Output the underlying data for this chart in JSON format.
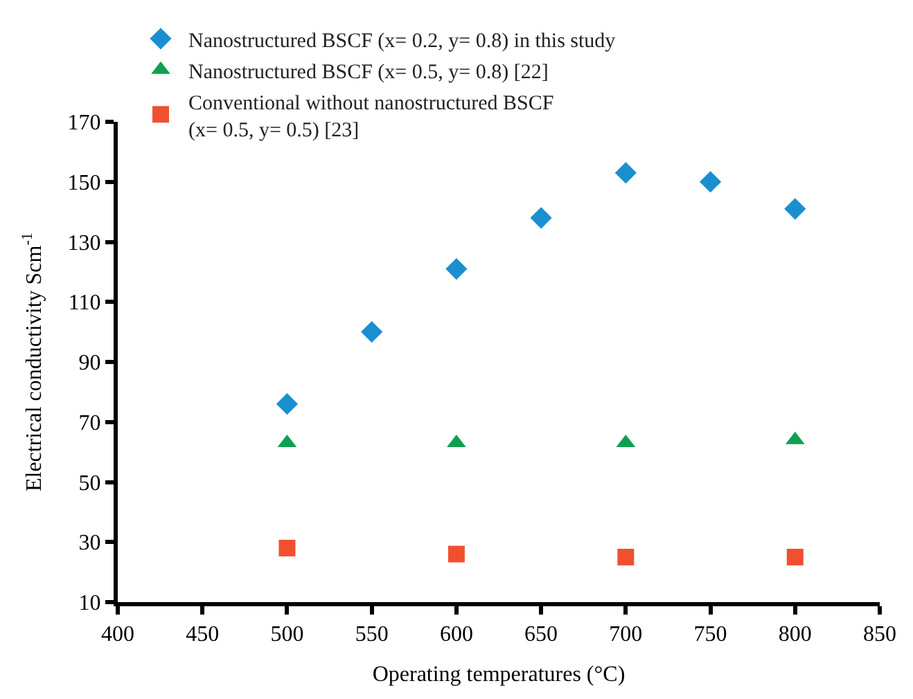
{
  "chart_data": {
    "type": "scatter",
    "xlabel": "Operating temperatures (°C)",
    "ylabel": "Electrical conductivity Scm$^{-1}$",
    "xlim": [
      400,
      850
    ],
    "xticks": [
      400,
      450,
      500,
      550,
      600,
      650,
      700,
      750,
      800,
      850
    ],
    "ylim": [
      10,
      170
    ],
    "yticks": [
      10,
      30,
      50,
      70,
      90,
      110,
      130,
      150,
      170
    ],
    "legend": "top left",
    "series": [
      {
        "name": "Nanostructured BSCF (x= 0.2, y= 0.8) in this study",
        "color": "#1a8fd0",
        "marker": "diamond",
        "x": [
          500,
          550,
          600,
          650,
          700,
          750,
          800
        ],
        "values": [
          76,
          100,
          121,
          138,
          153,
          150,
          141
        ]
      },
      {
        "name": "Nanostructured BSCF (x= 0.5, y= 0.8) [22]",
        "color": "#0ea050",
        "marker": "triangle",
        "x": [
          500,
          600,
          700,
          800
        ],
        "values": [
          63,
          63,
          63,
          64
        ]
      },
      {
        "name": "Conventional without nanostructured BSCF\n(x= 0.5, y= 0.5) [23]",
        "color": "#f05030",
        "marker": "square",
        "x": [
          500,
          600,
          700,
          800
        ],
        "values": [
          28,
          26,
          25,
          25
        ]
      }
    ]
  }
}
